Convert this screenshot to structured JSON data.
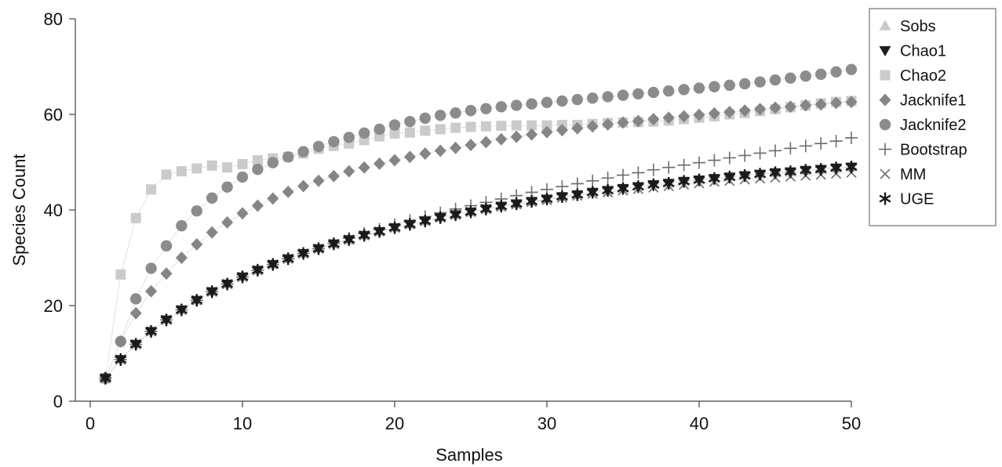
{
  "chart_data": {
    "type": "scatter",
    "xlabel": "Samples",
    "ylabel": "Species Count",
    "xlim": [
      0,
      50
    ],
    "ylim": [
      0,
      80
    ],
    "xticks": [
      "0",
      "10",
      "20",
      "30",
      "40",
      "50"
    ],
    "yticks": [
      "0",
      "20",
      "40",
      "60",
      "80"
    ],
    "grid": false,
    "legend_position": "top-right",
    "x": [
      1,
      2,
      3,
      4,
      5,
      6,
      7,
      8,
      9,
      10,
      11,
      12,
      13,
      14,
      15,
      16,
      17,
      18,
      19,
      20,
      21,
      22,
      23,
      24,
      25,
      26,
      27,
      28,
      29,
      30,
      31,
      32,
      33,
      34,
      35,
      36,
      37,
      38,
      39,
      40,
      41,
      42,
      43,
      44,
      45,
      46,
      47,
      48,
      49,
      50
    ],
    "series": [
      {
        "name": "Sobs",
        "marker": "triangle-up",
        "color": "#c8c8c8",
        "values": [
          4.8,
          8.7,
          11.9,
          14.6,
          17.0,
          19.1,
          21.1,
          22.9,
          24.5,
          26.0,
          27.4,
          28.6,
          29.8,
          30.9,
          31.9,
          32.9,
          33.8,
          34.7,
          35.5,
          36.3,
          37.0,
          37.7,
          38.4,
          39.0,
          39.6,
          40.2,
          40.8,
          41.3,
          41.8,
          42.3,
          42.8,
          43.2,
          43.7,
          44.1,
          44.5,
          44.9,
          45.3,
          45.6,
          46.0,
          46.3,
          46.6,
          46.9,
          47.2,
          47.5,
          47.8,
          48.0,
          48.3,
          48.5,
          48.8,
          49.0
        ]
      },
      {
        "name": "Chao1",
        "marker": "triangle-down",
        "color": "#1e1e1e",
        "values": [
          4.8,
          8.7,
          11.9,
          14.6,
          17.0,
          19.1,
          21.1,
          22.9,
          24.5,
          26.0,
          27.4,
          28.6,
          29.8,
          30.9,
          31.9,
          32.9,
          33.8,
          34.7,
          35.5,
          36.3,
          37.0,
          37.7,
          38.4,
          39.0,
          39.6,
          40.2,
          40.8,
          41.3,
          41.8,
          42.3,
          42.8,
          43.2,
          43.7,
          44.1,
          44.5,
          44.9,
          45.3,
          45.6,
          46.0,
          46.3,
          46.6,
          46.9,
          47.2,
          47.5,
          47.8,
          48.0,
          48.3,
          48.5,
          48.8,
          49.0
        ]
      },
      {
        "name": "Chao2",
        "marker": "square",
        "color": "#cbcbcb",
        "values": [
          4.8,
          26.5,
          38.3,
          44.3,
          47.4,
          48.1,
          48.7,
          49.3,
          48.9,
          49.6,
          50.4,
          50.8,
          51.1,
          51.8,
          52.8,
          53.4,
          53.9,
          54.6,
          55.4,
          56.0,
          56.2,
          56.6,
          56.9,
          57.2,
          57.4,
          57.5,
          57.6,
          57.7,
          57.7,
          57.7,
          57.8,
          57.8,
          58.0,
          58.2,
          58.3,
          58.4,
          58.5,
          58.7,
          59.0,
          59.3,
          59.6,
          60.0,
          60.3,
          60.7,
          61.1,
          61.5,
          61.9,
          62.3,
          62.6,
          62.8
        ]
      },
      {
        "name": "Jacknife1",
        "marker": "diamond",
        "color": "#858585",
        "values": [
          4.8,
          12.5,
          18.4,
          23.0,
          26.7,
          30.0,
          32.8,
          35.3,
          37.4,
          39.3,
          40.9,
          42.4,
          43.8,
          45.0,
          46.1,
          47.1,
          48.1,
          48.9,
          49.7,
          50.4,
          51.1,
          51.8,
          52.4,
          53.0,
          53.6,
          54.2,
          54.8,
          55.3,
          55.8,
          56.3,
          56.7,
          57.1,
          57.5,
          57.9,
          58.3,
          58.6,
          59.0,
          59.3,
          59.6,
          59.9,
          60.2,
          60.5,
          60.8,
          61.1,
          61.4,
          61.6,
          61.9,
          62.1,
          62.4,
          62.6
        ]
      },
      {
        "name": "Jacknife2",
        "marker": "circle",
        "color": "#8c8c8c",
        "values": [
          4.8,
          12.5,
          21.4,
          27.8,
          32.5,
          36.7,
          39.8,
          42.5,
          44.8,
          46.9,
          48.5,
          49.9,
          51.1,
          52.2,
          53.3,
          54.3,
          55.2,
          56.1,
          56.9,
          57.8,
          58.5,
          59.2,
          59.8,
          60.3,
          60.8,
          61.2,
          61.6,
          61.9,
          62.2,
          62.5,
          62.8,
          63.1,
          63.4,
          63.7,
          64.0,
          64.3,
          64.6,
          64.9,
          65.2,
          65.5,
          65.8,
          66.1,
          66.4,
          66.8,
          67.2,
          67.6,
          68.0,
          68.4,
          68.9,
          69.4
        ]
      },
      {
        "name": "Bootstrap",
        "marker": "plus",
        "color": "#6e6e6e",
        "values": [
          4.8,
          8.7,
          11.9,
          14.6,
          17.0,
          19.1,
          21.1,
          22.9,
          24.5,
          26.0,
          27.4,
          28.6,
          29.8,
          30.9,
          31.9,
          33.0,
          34.1,
          35.1,
          36.0,
          36.9,
          37.8,
          38.6,
          39.4,
          40.2,
          40.9,
          41.6,
          42.3,
          43.0,
          43.7,
          44.3,
          44.9,
          45.5,
          46.1,
          46.7,
          47.3,
          47.8,
          48.4,
          48.9,
          49.4,
          49.9,
          50.4,
          50.9,
          51.4,
          51.9,
          52.4,
          52.9,
          53.4,
          53.9,
          54.4,
          55.1
        ]
      },
      {
        "name": "MM",
        "marker": "x",
        "color": "#777777",
        "values": [
          4.8,
          8.7,
          11.9,
          14.6,
          17.0,
          19.1,
          21.1,
          22.9,
          24.5,
          26.0,
          27.4,
          28.6,
          29.8,
          30.9,
          31.9,
          32.9,
          33.8,
          34.7,
          35.5,
          36.3,
          37.0,
          37.7,
          38.4,
          39.0,
          39.6,
          40.2,
          40.7,
          41.2,
          41.7,
          42.1,
          42.6,
          43.0,
          43.4,
          43.7,
          44.1,
          44.4,
          44.7,
          45.0,
          45.3,
          45.6,
          45.9,
          46.1,
          46.4,
          46.6,
          46.8,
          47.0,
          47.2,
          47.4,
          47.6,
          47.8
        ]
      },
      {
        "name": "UGE",
        "marker": "asterisk",
        "color": "#1a1a1a",
        "values": [
          4.8,
          8.7,
          11.9,
          14.6,
          17.0,
          19.1,
          21.1,
          22.9,
          24.5,
          26.0,
          27.4,
          28.6,
          29.8,
          30.9,
          31.9,
          32.9,
          33.8,
          34.7,
          35.5,
          36.3,
          37.0,
          37.7,
          38.4,
          39.0,
          39.6,
          40.2,
          40.8,
          41.3,
          41.8,
          42.3,
          42.8,
          43.2,
          43.7,
          44.1,
          44.5,
          44.9,
          45.3,
          45.6,
          46.0,
          46.3,
          46.6,
          46.9,
          47.2,
          47.5,
          47.8,
          48.0,
          48.3,
          48.5,
          48.8,
          49.0
        ]
      }
    ]
  }
}
